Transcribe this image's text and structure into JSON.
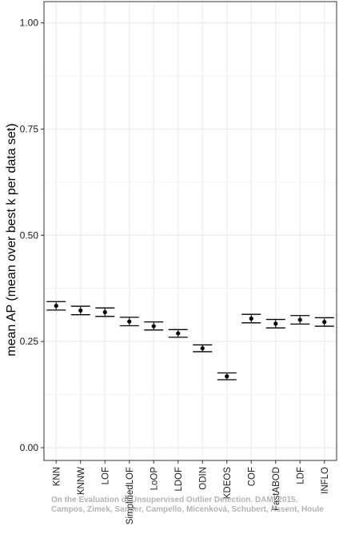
{
  "chart_data": {
    "type": "errorbar",
    "ylabel": "mean AP (mean over best k per data set)",
    "ylim": [
      -0.03,
      1.05
    ],
    "yticks": [
      0.0,
      0.25,
      0.5,
      0.75,
      1.0
    ],
    "ytick_labels": [
      "0.00",
      "0.25",
      "0.50",
      "0.75",
      "1.00"
    ],
    "grid": true,
    "categories": [
      "KNN",
      "KNNW",
      "LOF",
      "SimplifiedLOF",
      "LoOP",
      "LDOF",
      "ODIN",
      "KDEOS",
      "COF",
      "FastABOD",
      "LDF",
      "INFLO"
    ],
    "means": [
      0.334,
      0.323,
      0.319,
      0.297,
      0.286,
      0.269,
      0.234,
      0.168,
      0.304,
      0.292,
      0.301,
      0.296
    ],
    "lower": [
      0.324,
      0.313,
      0.309,
      0.287,
      0.277,
      0.26,
      0.226,
      0.16,
      0.294,
      0.282,
      0.291,
      0.286
    ],
    "upper": [
      0.344,
      0.333,
      0.329,
      0.307,
      0.296,
      0.278,
      0.242,
      0.176,
      0.314,
      0.302,
      0.311,
      0.306
    ],
    "colors": {
      "grid": "#ebebeb",
      "mark": "#000000"
    }
  },
  "watermark": {
    "line1": "On the Evaluation of Unsupervised Outlier Detection. DAMI 2015.",
    "line2": "Campos, Zimek, Sander, Campello, Micenková, Schubert, Assent, Houle"
  }
}
